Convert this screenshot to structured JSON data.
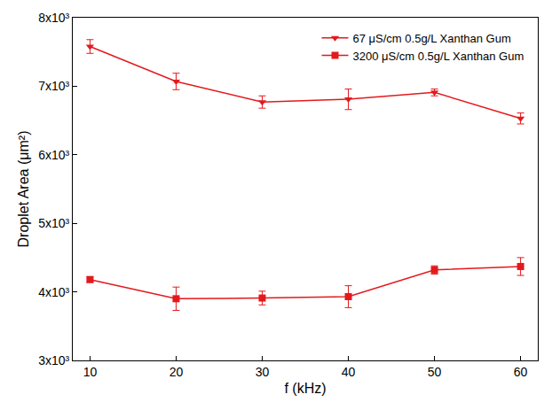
{
  "chart_data": {
    "type": "line",
    "x_label": "f (kHz)",
    "y_label": "Droplet Area (μm²)",
    "xlim": [
      8,
      62
    ],
    "xticks": [
      10,
      20,
      30,
      40,
      50,
      60
    ],
    "ylim": [
      3000,
      8000
    ],
    "yticks": [
      {
        "value": 3000,
        "label": "3x10³"
      },
      {
        "value": 4000,
        "label": "4x10³"
      },
      {
        "value": 5000,
        "label": "5x10³"
      },
      {
        "value": 6000,
        "label": "6x10³"
      },
      {
        "value": 7000,
        "label": "7x10³"
      },
      {
        "value": 8000,
        "label": "8x10³"
      }
    ],
    "grid": false,
    "legend": "top right",
    "series": [
      {
        "name": "67 μS/cm 0.5g/L Xanthan Gum",
        "color": "#e3191c",
        "marker": "triangle-down",
        "x": [
          10,
          20,
          30,
          40,
          50,
          60
        ],
        "values": [
          7580,
          7070,
          6770,
          6810,
          6910,
          6530
        ],
        "errors": [
          100,
          120,
          90,
          150,
          50,
          80
        ]
      },
      {
        "name": "3200 μS/cm 0.5g/L Xanthan Gum",
        "color": "#e3191c",
        "marker": "square",
        "x": [
          10,
          20,
          30,
          40,
          50,
          60
        ],
        "values": [
          4180,
          3900,
          3910,
          3930,
          4320,
          4370
        ],
        "errors": [
          40,
          170,
          100,
          160,
          60,
          130
        ]
      }
    ]
  }
}
